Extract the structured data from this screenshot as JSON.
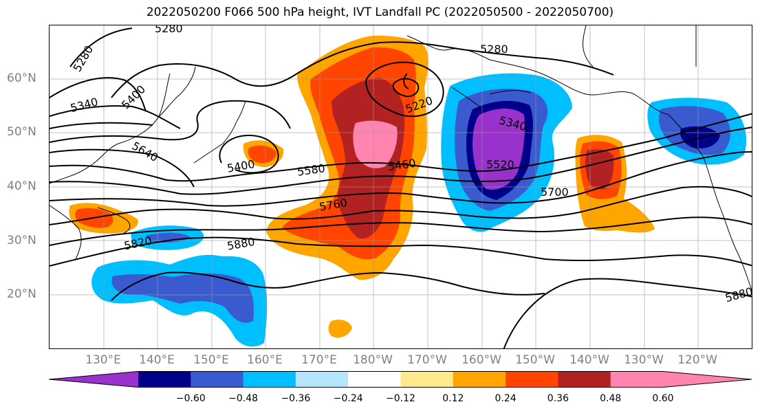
{
  "title": "2022050200 F066 500 hPa height, IVT Landfall PC (2022050500 - 2022050700)",
  "lat_labels": [
    "60°N",
    "50°N",
    "40°N",
    "30°N",
    "20°N"
  ],
  "lon_labels": [
    "130°E",
    "140°E",
    "150°E",
    "160°E",
    "170°E",
    "180°W",
    "170°W",
    "160°W",
    "150°W",
    "140°W",
    "130°W",
    "120°W"
  ],
  "contour_labels": [
    "5280",
    "5280",
    "5280",
    "5340",
    "5400",
    "5220",
    "5340",
    "5640",
    "5400",
    "5580",
    "5460",
    "5520",
    "5700",
    "5760",
    "5820",
    "5880",
    "5880"
  ],
  "colorbar": {
    "ticks": [
      "−0.60",
      "−0.48",
      "−0.36",
      "−0.24",
      "−0.12",
      "0.12",
      "0.24",
      "0.36",
      "0.48",
      "0.60"
    ],
    "colors": [
      "#9932cc",
      "#00008b",
      "#3a5bd0",
      "#00bfff",
      "#b4e4ff",
      "#ffffff",
      "#ffe98a",
      "#ffa500",
      "#ff4500",
      "#b22222",
      "#ff85b0"
    ]
  }
}
